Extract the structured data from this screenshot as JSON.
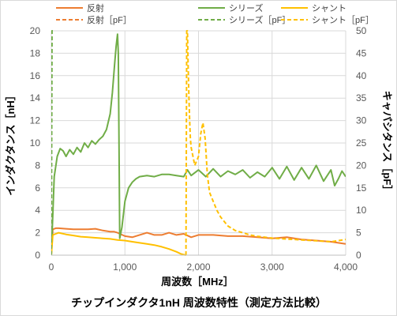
{
  "chart_data": {
    "type": "line",
    "title": "チップインダクタ1nH 周波数特性（測定方法比較）",
    "xlabel": "周波数［MHz］",
    "ylabel": "インダクタンス［nH］",
    "y2label": "キャパシタンス［pF］",
    "xlim": [
      0,
      4000
    ],
    "ylim": [
      0,
      20
    ],
    "y2lim": [
      0,
      50
    ],
    "x_ticks": [
      0,
      1000,
      2000,
      3000,
      4000
    ],
    "x_tick_labels": [
      "0",
      "1,000",
      "2,000",
      "3,000",
      "4,000"
    ],
    "y_ticks": [
      0,
      2,
      4,
      6,
      8,
      10,
      12,
      14,
      16,
      18,
      20
    ],
    "y2_ticks": [
      0,
      5,
      10,
      15,
      20,
      25,
      30,
      35,
      40,
      45,
      50
    ],
    "grid": true,
    "legend_position": "top",
    "series": [
      {
        "name": "反射",
        "axis": "left",
        "style": "solid",
        "color": "#ED7D31",
        "x": [
          0,
          20,
          60,
          100,
          200,
          300,
          400,
          500,
          600,
          700,
          800,
          850,
          900,
          1000,
          1100,
          1200,
          1300,
          1400,
          1500,
          1600,
          1700,
          1800,
          1900,
          2000,
          2200,
          2400,
          2600,
          2800,
          3000,
          3200,
          3400,
          3600,
          3800,
          4000
        ],
        "y": [
          0,
          2.3,
          2.4,
          2.4,
          2.35,
          2.3,
          2.3,
          2.3,
          2.35,
          2.2,
          2.1,
          2.1,
          2.0,
          1.7,
          1.6,
          1.8,
          2.0,
          1.8,
          1.8,
          2.0,
          1.8,
          1.9,
          1.6,
          1.8,
          1.8,
          1.7,
          1.7,
          1.6,
          1.5,
          1.6,
          1.4,
          1.3,
          1.2,
          1.0
        ]
      },
      {
        "name": "シリーズ",
        "axis": "left",
        "style": "solid",
        "color": "#70AD47",
        "x": [
          0,
          40,
          80,
          120,
          160,
          200,
          250,
          300,
          350,
          400,
          450,
          500,
          550,
          600,
          650,
          700,
          750,
          800,
          830,
          860,
          880,
          900,
          910,
          930,
          960,
          1000,
          1050,
          1100,
          1150,
          1200,
          1300,
          1400,
          1500,
          1600,
          1700,
          1800,
          1850,
          1900,
          2000,
          2100,
          2200,
          2300,
          2400,
          2500,
          2600,
          2700,
          2800,
          2900,
          3000,
          3100,
          3200,
          3300,
          3400,
          3500,
          3600,
          3700,
          3800,
          3850,
          3900,
          3950,
          4000
        ],
        "y": [
          0,
          7.0,
          8.8,
          9.5,
          9.3,
          8.8,
          9.4,
          9.0,
          9.6,
          9.2,
          10.0,
          9.6,
          10.2,
          9.9,
          10.3,
          10.6,
          11.2,
          12.6,
          14.5,
          17.0,
          18.6,
          19.7,
          18.0,
          1.5,
          2.5,
          4.8,
          6.0,
          6.5,
          6.8,
          7.0,
          7.1,
          7.0,
          7.2,
          7.2,
          7.1,
          7.0,
          7.6,
          7.1,
          7.6,
          7.0,
          7.7,
          7.0,
          7.5,
          7.2,
          7.6,
          6.9,
          7.4,
          7.0,
          7.8,
          6.8,
          7.9,
          6.7,
          7.8,
          6.8,
          8.0,
          6.6,
          7.6,
          6.2,
          6.8,
          7.5,
          7.0
        ]
      },
      {
        "name": "シャント",
        "axis": "left",
        "style": "solid",
        "color": "#FFC000",
        "x": [
          0,
          20,
          60,
          100,
          200,
          300,
          400,
          500,
          600,
          700,
          800,
          900,
          1000,
          1100,
          1200,
          1300,
          1400,
          1500,
          1600,
          1700,
          1760,
          1800,
          1830
        ],
        "y": [
          0,
          1.8,
          1.9,
          2.0,
          1.85,
          1.75,
          1.65,
          1.6,
          1.55,
          1.5,
          1.45,
          1.35,
          1.3,
          1.2,
          1.1,
          1.0,
          0.9,
          0.75,
          0.55,
          0.3,
          0.12,
          0.05,
          0
        ]
      },
      {
        "name": "反射［pF］",
        "axis": "right",
        "style": "dashed",
        "color": "#ED7D31",
        "x": [],
        "y": []
      },
      {
        "name": "シリーズ［pF］",
        "axis": "right",
        "style": "dashed",
        "color": "#70AD47",
        "x": [
          0,
          10,
          20
        ],
        "y": [
          0,
          50,
          50
        ]
      },
      {
        "name": "シャント［pF］",
        "axis": "right",
        "style": "dashed",
        "color": "#FFC000",
        "x": [
          1830,
          1840,
          1850,
          1860,
          1870,
          1880,
          1890,
          1900,
          1950,
          2000,
          2030,
          2060,
          2090,
          2120,
          2150,
          2200,
          2250,
          2300,
          2350,
          2400,
          2500,
          2600,
          2700,
          2800,
          3000,
          3200,
          3400,
          3600,
          3800,
          4000
        ],
        "y": [
          0,
          50,
          50,
          42,
          35,
          30,
          26,
          24,
          20,
          22,
          27,
          29.5,
          26,
          18,
          14,
          12,
          10,
          8.5,
          7.5,
          6.5,
          5.5,
          5.0,
          4.5,
          4.2,
          3.8,
          3.6,
          3.4,
          3.2,
          3.0,
          3.5
        ]
      }
    ]
  }
}
